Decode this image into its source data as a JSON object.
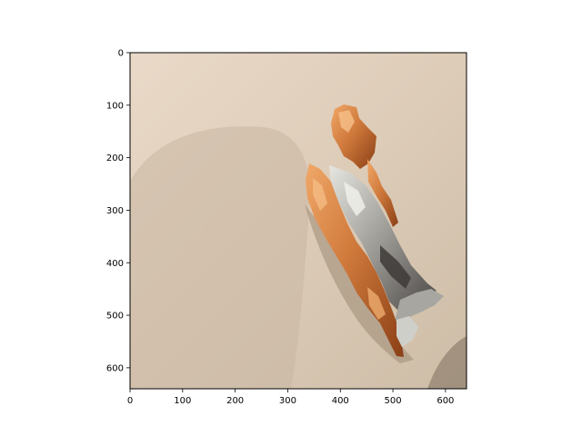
{
  "figure": {
    "background": "#ffffff",
    "image": {
      "description_tags": [
        "crumpled-foil-wrapper",
        "orange-foil",
        "silver-foil",
        "beige-surface",
        "shadow"
      ],
      "extent_x": [
        0,
        640
      ],
      "extent_y": [
        0,
        640
      ],
      "y_inverted": true,
      "colors": {
        "surface_light": "#e3d2c1",
        "surface_mid": "#d8c7b3",
        "surface_dark": "#b9a691",
        "shadow": "#a8957f",
        "foil_orange": "#d07a3c",
        "foil_orange_dark": "#8a3f16",
        "foil_orange_light": "#f0a868",
        "foil_silver": "#b8b8b4",
        "foil_silver_dark": "#4a4744",
        "foil_silver_light": "#e6e6e0"
      }
    },
    "axes": {
      "x_ticks": [
        "0",
        "100",
        "200",
        "300",
        "400",
        "500",
        "600"
      ],
      "x_tick_values": [
        0,
        100,
        200,
        300,
        400,
        500,
        600
      ],
      "y_ticks": [
        "0",
        "100",
        "200",
        "300",
        "400",
        "500",
        "600"
      ],
      "y_tick_values": [
        0,
        100,
        200,
        300,
        400,
        500,
        600
      ]
    }
  }
}
